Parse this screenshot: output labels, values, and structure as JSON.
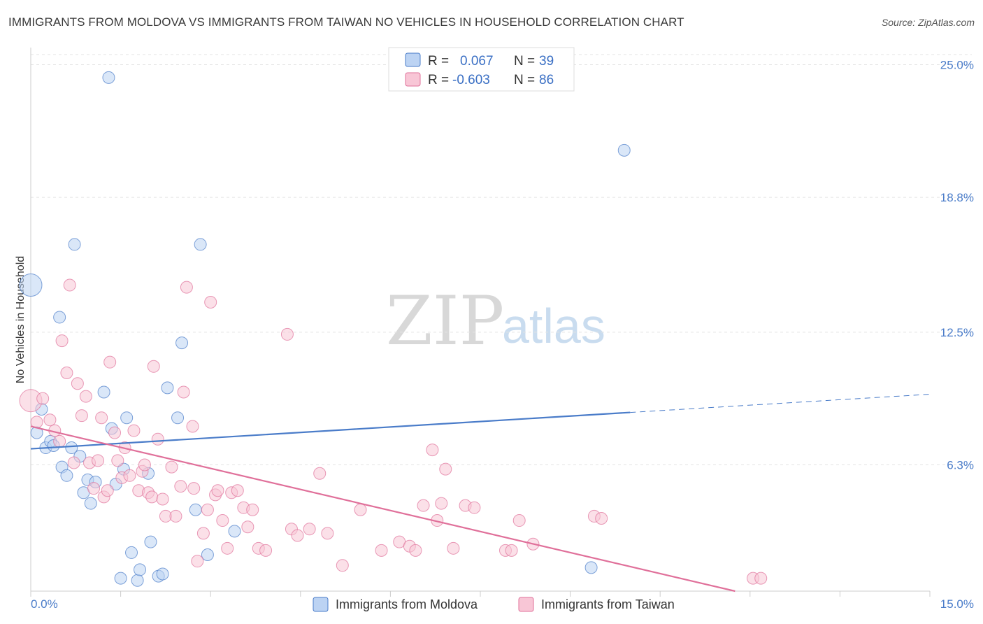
{
  "title": "IMMIGRANTS FROM MOLDOVA VS IMMIGRANTS FROM TAIWAN NO VEHICLES IN HOUSEHOLD CORRELATION CHART",
  "source": "Source: ZipAtlas.com",
  "watermark": {
    "zip": "ZIP",
    "atlas": "atlas"
  },
  "legend": {
    "r_label": "R =",
    "n_label": "N =",
    "rows": [
      {
        "name": "Immigrants from Moldova",
        "r": "0.067",
        "n": "39",
        "color": "#4a7cc9",
        "fill": "#bcd3f3"
      },
      {
        "name": "Immigrants from Taiwan",
        "r": "-0.603",
        "n": "86",
        "color": "#e0709a",
        "fill": "#f8c6d6"
      }
    ]
  },
  "chart_data": {
    "type": "scatter",
    "title": "IMMIGRANTS FROM MOLDOVA VS IMMIGRANTS FROM TAIWAN NO VEHICLES IN HOUSEHOLD CORRELATION CHART",
    "xlabel": "",
    "ylabel": "No Vehicles in Household",
    "xlim": [
      0,
      15
    ],
    "ylim": [
      0.4,
      25.8
    ],
    "x_tick_labels": [
      "0.0%",
      "15.0%"
    ],
    "y_ticks": [
      6.3,
      12.5,
      18.8,
      25.0
    ],
    "y_tick_labels": [
      "6.3%",
      "12.5%",
      "18.8%",
      "25.0%"
    ],
    "grid": true,
    "series": [
      {
        "name": "Immigrants from Moldova",
        "color": "#4a7cc9",
        "fill": "#bcd3f3",
        "points": [
          {
            "x": 0.0,
            "y": 14.7,
            "big": true
          },
          {
            "x": 0.1,
            "y": 7.8
          },
          {
            "x": 0.18,
            "y": 8.9
          },
          {
            "x": 0.25,
            "y": 7.1
          },
          {
            "x": 0.33,
            "y": 7.4
          },
          {
            "x": 0.38,
            "y": 7.2
          },
          {
            "x": 0.48,
            "y": 13.2
          },
          {
            "x": 0.52,
            "y": 6.2
          },
          {
            "x": 0.6,
            "y": 5.8
          },
          {
            "x": 0.68,
            "y": 7.1
          },
          {
            "x": 0.73,
            "y": 16.6
          },
          {
            "x": 0.82,
            "y": 6.7
          },
          {
            "x": 0.88,
            "y": 5.0
          },
          {
            "x": 0.95,
            "y": 5.6
          },
          {
            "x": 1.0,
            "y": 4.5
          },
          {
            "x": 1.08,
            "y": 5.5
          },
          {
            "x": 1.22,
            "y": 9.7
          },
          {
            "x": 1.3,
            "y": 24.4
          },
          {
            "x": 1.35,
            "y": 8.0
          },
          {
            "x": 1.42,
            "y": 5.4
          },
          {
            "x": 1.5,
            "y": 1.0
          },
          {
            "x": 1.55,
            "y": 6.1
          },
          {
            "x": 1.6,
            "y": 8.5
          },
          {
            "x": 1.68,
            "y": 2.2
          },
          {
            "x": 1.78,
            "y": 0.9
          },
          {
            "x": 1.82,
            "y": 1.4
          },
          {
            "x": 1.96,
            "y": 5.9
          },
          {
            "x": 2.0,
            "y": 2.7
          },
          {
            "x": 2.13,
            "y": 1.1
          },
          {
            "x": 2.2,
            "y": 1.2
          },
          {
            "x": 2.28,
            "y": 9.9
          },
          {
            "x": 2.45,
            "y": 8.5
          },
          {
            "x": 2.52,
            "y": 12.0
          },
          {
            "x": 2.75,
            "y": 4.2
          },
          {
            "x": 2.83,
            "y": 16.6
          },
          {
            "x": 2.95,
            "y": 2.1
          },
          {
            "x": 3.4,
            "y": 3.2
          },
          {
            "x": 9.9,
            "y": 21.0
          },
          {
            "x": 9.35,
            "y": 1.5
          }
        ],
        "trend": {
          "x1": 0.0,
          "y1": 7.05,
          "x2": 10.0,
          "y2": 8.75,
          "dash_x2": 15.0,
          "dash_y2": 9.6
        }
      },
      {
        "name": "Immigrants from Taiwan",
        "color": "#e0709a",
        "fill": "#f8c6d6",
        "points": [
          {
            "x": 0.0,
            "y": 9.3,
            "big": true
          },
          {
            "x": 0.1,
            "y": 8.3
          },
          {
            "x": 0.2,
            "y": 9.4
          },
          {
            "x": 0.32,
            "y": 8.4
          },
          {
            "x": 0.4,
            "y": 7.9
          },
          {
            "x": 0.48,
            "y": 7.4
          },
          {
            "x": 0.52,
            "y": 12.1
          },
          {
            "x": 0.6,
            "y": 10.6
          },
          {
            "x": 0.65,
            "y": 14.7
          },
          {
            "x": 0.72,
            "y": 6.4
          },
          {
            "x": 0.78,
            "y": 10.1
          },
          {
            "x": 0.85,
            "y": 8.6
          },
          {
            "x": 0.92,
            "y": 9.5
          },
          {
            "x": 0.98,
            "y": 6.4
          },
          {
            "x": 1.05,
            "y": 5.2
          },
          {
            "x": 1.12,
            "y": 6.5
          },
          {
            "x": 1.18,
            "y": 8.5
          },
          {
            "x": 1.22,
            "y": 4.8
          },
          {
            "x": 1.28,
            "y": 5.1
          },
          {
            "x": 1.32,
            "y": 11.1
          },
          {
            "x": 1.4,
            "y": 7.8
          },
          {
            "x": 1.45,
            "y": 6.5
          },
          {
            "x": 1.52,
            "y": 5.7
          },
          {
            "x": 1.57,
            "y": 7.1
          },
          {
            "x": 1.65,
            "y": 5.8
          },
          {
            "x": 1.72,
            "y": 7.9
          },
          {
            "x": 1.8,
            "y": 5.1
          },
          {
            "x": 1.86,
            "y": 6.0
          },
          {
            "x": 1.9,
            "y": 6.3
          },
          {
            "x": 1.96,
            "y": 5.0
          },
          {
            "x": 2.02,
            "y": 4.8
          },
          {
            "x": 2.05,
            "y": 10.9
          },
          {
            "x": 2.12,
            "y": 7.5
          },
          {
            "x": 2.2,
            "y": 4.7
          },
          {
            "x": 2.25,
            "y": 3.9
          },
          {
            "x": 2.35,
            "y": 6.2
          },
          {
            "x": 2.42,
            "y": 3.9
          },
          {
            "x": 2.5,
            "y": 5.3
          },
          {
            "x": 2.55,
            "y": 9.7
          },
          {
            "x": 2.6,
            "y": 14.6
          },
          {
            "x": 2.7,
            "y": 8.1
          },
          {
            "x": 2.72,
            "y": 5.2
          },
          {
            "x": 2.78,
            "y": 1.8
          },
          {
            "x": 2.88,
            "y": 3.1
          },
          {
            "x": 2.95,
            "y": 4.2
          },
          {
            "x": 3.0,
            "y": 13.9
          },
          {
            "x": 3.08,
            "y": 4.9
          },
          {
            "x": 3.12,
            "y": 5.1
          },
          {
            "x": 3.2,
            "y": 3.7
          },
          {
            "x": 3.28,
            "y": 2.4
          },
          {
            "x": 3.35,
            "y": 5.0
          },
          {
            "x": 3.45,
            "y": 5.1
          },
          {
            "x": 3.55,
            "y": 4.3
          },
          {
            "x": 3.62,
            "y": 3.4
          },
          {
            "x": 3.7,
            "y": 4.2
          },
          {
            "x": 3.8,
            "y": 2.4
          },
          {
            "x": 3.92,
            "y": 2.3
          },
          {
            "x": 4.28,
            "y": 12.4
          },
          {
            "x": 4.35,
            "y": 3.3
          },
          {
            "x": 4.45,
            "y": 3.0
          },
          {
            "x": 4.65,
            "y": 3.3
          },
          {
            "x": 4.82,
            "y": 5.9
          },
          {
            "x": 4.95,
            "y": 3.1
          },
          {
            "x": 5.2,
            "y": 1.6
          },
          {
            "x": 5.5,
            "y": 4.2
          },
          {
            "x": 5.85,
            "y": 2.3
          },
          {
            "x": 6.15,
            "y": 2.7
          },
          {
            "x": 6.32,
            "y": 2.5
          },
          {
            "x": 6.42,
            "y": 2.3
          },
          {
            "x": 6.55,
            "y": 4.4
          },
          {
            "x": 6.7,
            "y": 7.0
          },
          {
            "x": 6.78,
            "y": 3.7
          },
          {
            "x": 6.85,
            "y": 4.5
          },
          {
            "x": 6.92,
            "y": 6.1
          },
          {
            "x": 7.05,
            "y": 2.4
          },
          {
            "x": 7.25,
            "y": 4.4
          },
          {
            "x": 7.4,
            "y": 4.3
          },
          {
            "x": 7.92,
            "y": 2.3
          },
          {
            "x": 8.02,
            "y": 2.3
          },
          {
            "x": 8.15,
            "y": 3.7
          },
          {
            "x": 8.38,
            "y": 2.6
          },
          {
            "x": 9.4,
            "y": 3.9
          },
          {
            "x": 9.52,
            "y": 3.8
          },
          {
            "x": 12.05,
            "y": 1.0
          },
          {
            "x": 12.18,
            "y": 1.0
          }
        ],
        "trend": {
          "x1": 0.0,
          "y1": 8.1,
          "x2": 11.75,
          "y2": 0.4
        }
      }
    ]
  }
}
